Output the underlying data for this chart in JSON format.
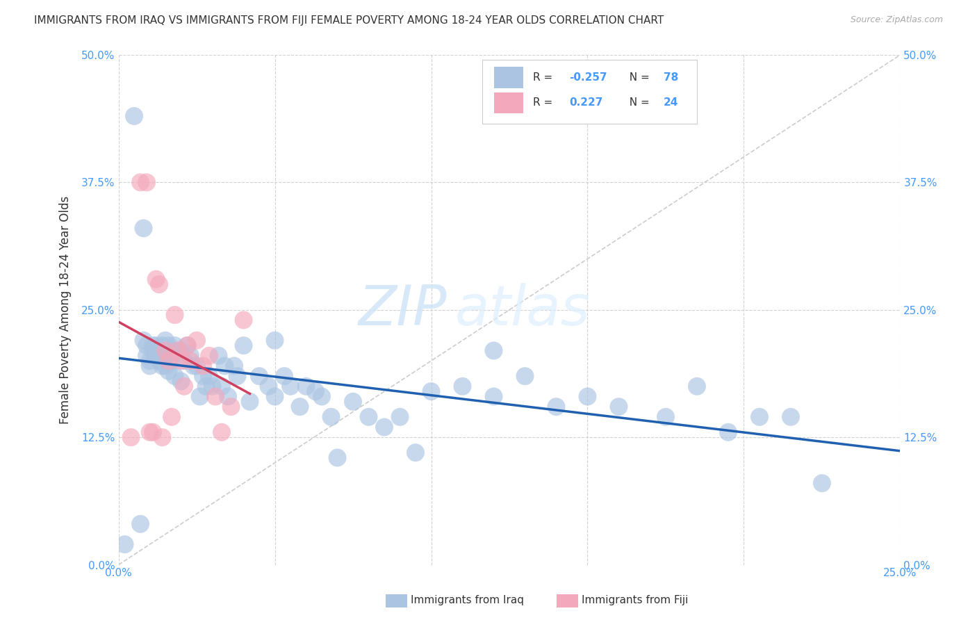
{
  "title": "IMMIGRANTS FROM IRAQ VS IMMIGRANTS FROM FIJI FEMALE POVERTY AMONG 18-24 YEAR OLDS CORRELATION CHART",
  "source": "Source: ZipAtlas.com",
  "ylabel": "Female Poverty Among 18-24 Year Olds",
  "xlim": [
    0,
    0.25
  ],
  "ylim": [
    0,
    0.5
  ],
  "xlabel_vals": [
    0,
    0.05,
    0.1,
    0.15,
    0.2,
    0.25
  ],
  "ylabel_vals": [
    0,
    0.125,
    0.25,
    0.375,
    0.5
  ],
  "iraq_R": -0.257,
  "iraq_N": 78,
  "fiji_R": 0.227,
  "fiji_N": 24,
  "iraq_color": "#aac4e2",
  "fiji_color": "#f4a8bb",
  "iraq_line_color": "#2060b0",
  "fiji_line_color": "#d04060",
  "diagonal_color": "#cccccc",
  "background_color": "#ffffff",
  "watermark_zip": "ZIP",
  "watermark_atlas": "atlas",
  "iraq_x": [
    0.002,
    0.005,
    0.007,
    0.008,
    0.009,
    0.009,
    0.01,
    0.01,
    0.011,
    0.011,
    0.012,
    0.012,
    0.013,
    0.013,
    0.014,
    0.014,
    0.015,
    0.015,
    0.015,
    0.016,
    0.016,
    0.017,
    0.017,
    0.018,
    0.018,
    0.019,
    0.02,
    0.02,
    0.021,
    0.022,
    0.023,
    0.024,
    0.025,
    0.026,
    0.027,
    0.028,
    0.029,
    0.03,
    0.032,
    0.033,
    0.034,
    0.035,
    0.037,
    0.038,
    0.04,
    0.042,
    0.045,
    0.048,
    0.05,
    0.053,
    0.055,
    0.058,
    0.06,
    0.063,
    0.065,
    0.068,
    0.07,
    0.075,
    0.08,
    0.085,
    0.09,
    0.095,
    0.1,
    0.11,
    0.12,
    0.13,
    0.14,
    0.15,
    0.16,
    0.175,
    0.185,
    0.195,
    0.205,
    0.215,
    0.225,
    0.008,
    0.05,
    0.12
  ],
  "iraq_y": [
    0.02,
    0.44,
    0.04,
    0.22,
    0.215,
    0.205,
    0.2,
    0.195,
    0.215,
    0.21,
    0.205,
    0.215,
    0.2,
    0.205,
    0.195,
    0.215,
    0.22,
    0.2,
    0.195,
    0.215,
    0.19,
    0.2,
    0.205,
    0.215,
    0.185,
    0.21,
    0.18,
    0.21,
    0.2,
    0.215,
    0.205,
    0.195,
    0.195,
    0.165,
    0.185,
    0.175,
    0.185,
    0.175,
    0.205,
    0.175,
    0.195,
    0.165,
    0.195,
    0.185,
    0.215,
    0.16,
    0.185,
    0.175,
    0.165,
    0.185,
    0.175,
    0.155,
    0.175,
    0.17,
    0.165,
    0.145,
    0.105,
    0.16,
    0.145,
    0.135,
    0.145,
    0.11,
    0.17,
    0.175,
    0.21,
    0.185,
    0.155,
    0.165,
    0.155,
    0.145,
    0.175,
    0.13,
    0.145,
    0.145,
    0.08,
    0.33,
    0.22,
    0.165
  ],
  "fiji_x": [
    0.004,
    0.007,
    0.009,
    0.01,
    0.011,
    0.012,
    0.013,
    0.014,
    0.015,
    0.016,
    0.017,
    0.018,
    0.019,
    0.02,
    0.021,
    0.022,
    0.023,
    0.025,
    0.027,
    0.029,
    0.031,
    0.033,
    0.036,
    0.04
  ],
  "fiji_y": [
    0.125,
    0.375,
    0.375,
    0.13,
    0.13,
    0.28,
    0.275,
    0.125,
    0.21,
    0.2,
    0.145,
    0.245,
    0.21,
    0.2,
    0.175,
    0.215,
    0.2,
    0.22,
    0.195,
    0.205,
    0.165,
    0.13,
    0.155,
    0.24
  ]
}
